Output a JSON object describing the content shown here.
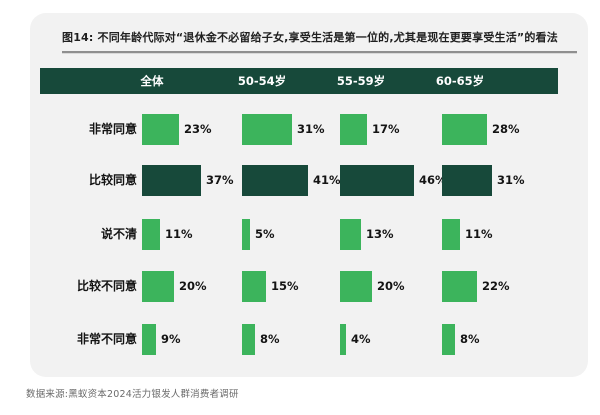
{
  "figure": {
    "title": "图14: 不同年龄代际对“退休金不必留给子女,享受生活是第一位的,尤其是现在更要享受生活”的看法",
    "source": "数据来源:黑蚁资本2024活力银发人群消费者调研"
  },
  "colors": {
    "header_bg": "#17493a",
    "bar_green": "#3cb45c",
    "bar_dark_green": "#17493a",
    "card_bg": "#f2f2f2"
  },
  "chart_data": {
    "type": "bar",
    "orientation": "horizontal",
    "unit": "%",
    "value_labels": true,
    "grid": false,
    "legend": "none",
    "columns": [
      "全体",
      "50-54岁",
      "55-59岁",
      "60-65岁"
    ],
    "categories": [
      "非常同意",
      "比较同意",
      "说不清",
      "比较不同意",
      "非常不同意"
    ],
    "rows": [
      {
        "label": "非常同意",
        "emphasis": false,
        "values": [
          23,
          31,
          17,
          28
        ]
      },
      {
        "label": "比较同意",
        "emphasis": true,
        "values": [
          37,
          41,
          46,
          31
        ]
      },
      {
        "label": "说不清",
        "emphasis": false,
        "values": [
          11,
          5,
          13,
          11
        ]
      },
      {
        "label": "比较不同意",
        "emphasis": false,
        "values": [
          20,
          15,
          20,
          22
        ]
      },
      {
        "label": "非常不同意",
        "emphasis": false,
        "values": [
          9,
          8,
          4,
          8
        ]
      }
    ],
    "series": [
      {
        "name": "全体",
        "values": [
          23,
          37,
          11,
          20,
          9
        ]
      },
      {
        "name": "50-54岁",
        "values": [
          31,
          41,
          5,
          15,
          8
        ]
      },
      {
        "name": "55-59岁",
        "values": [
          17,
          46,
          13,
          20,
          4
        ]
      },
      {
        "name": "60-65岁",
        "values": [
          28,
          31,
          11,
          22,
          8
        ]
      }
    ]
  }
}
